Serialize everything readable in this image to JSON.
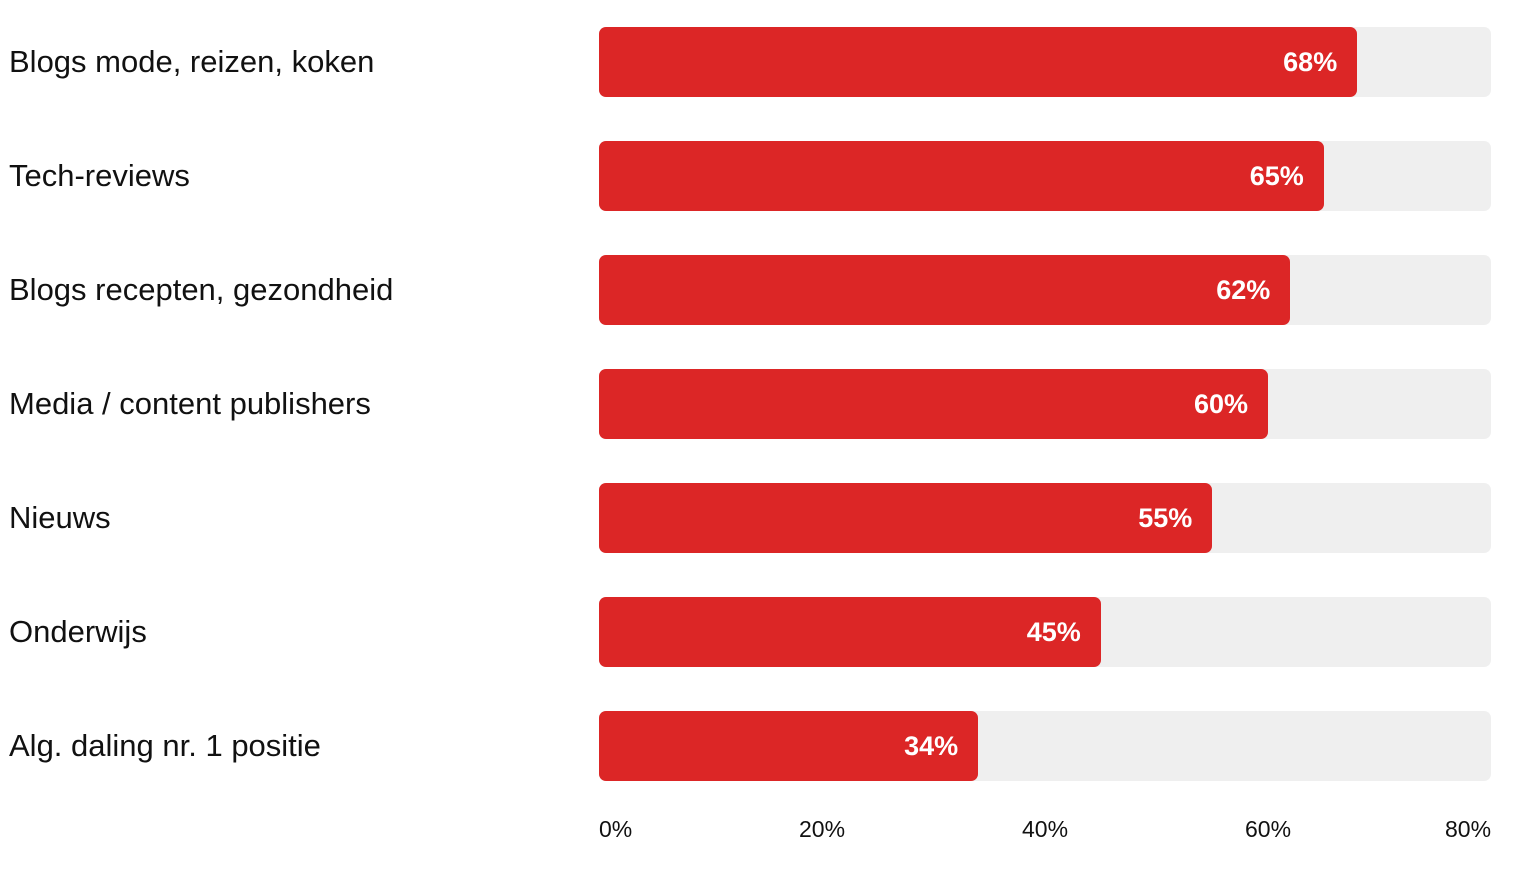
{
  "chart_data": {
    "type": "bar",
    "orientation": "horizontal",
    "categories": [
      "Blogs mode, reizen, koken",
      "Tech-reviews",
      "Blogs recepten, gezondheid",
      "Media / content publishers",
      "Nieuws",
      "Onderwijs",
      "Alg. daling nr. 1 positie"
    ],
    "values": [
      68,
      65,
      62,
      60,
      55,
      45,
      34
    ],
    "value_labels": [
      "68%",
      "65%",
      "62%",
      "60%",
      "55%",
      "45%",
      "34%"
    ],
    "xlim": [
      0,
      80
    ],
    "ticks": [
      0,
      20,
      40,
      60,
      80
    ],
    "tick_labels": [
      "0%",
      "20%",
      "40%",
      "60%",
      "80%"
    ],
    "title": "",
    "xlabel": "",
    "ylabel": "",
    "grid": false,
    "colors": {
      "bar": "#dc2626",
      "track": "#efefef",
      "value_text": "#ffffff",
      "label_text": "#111111"
    }
  }
}
